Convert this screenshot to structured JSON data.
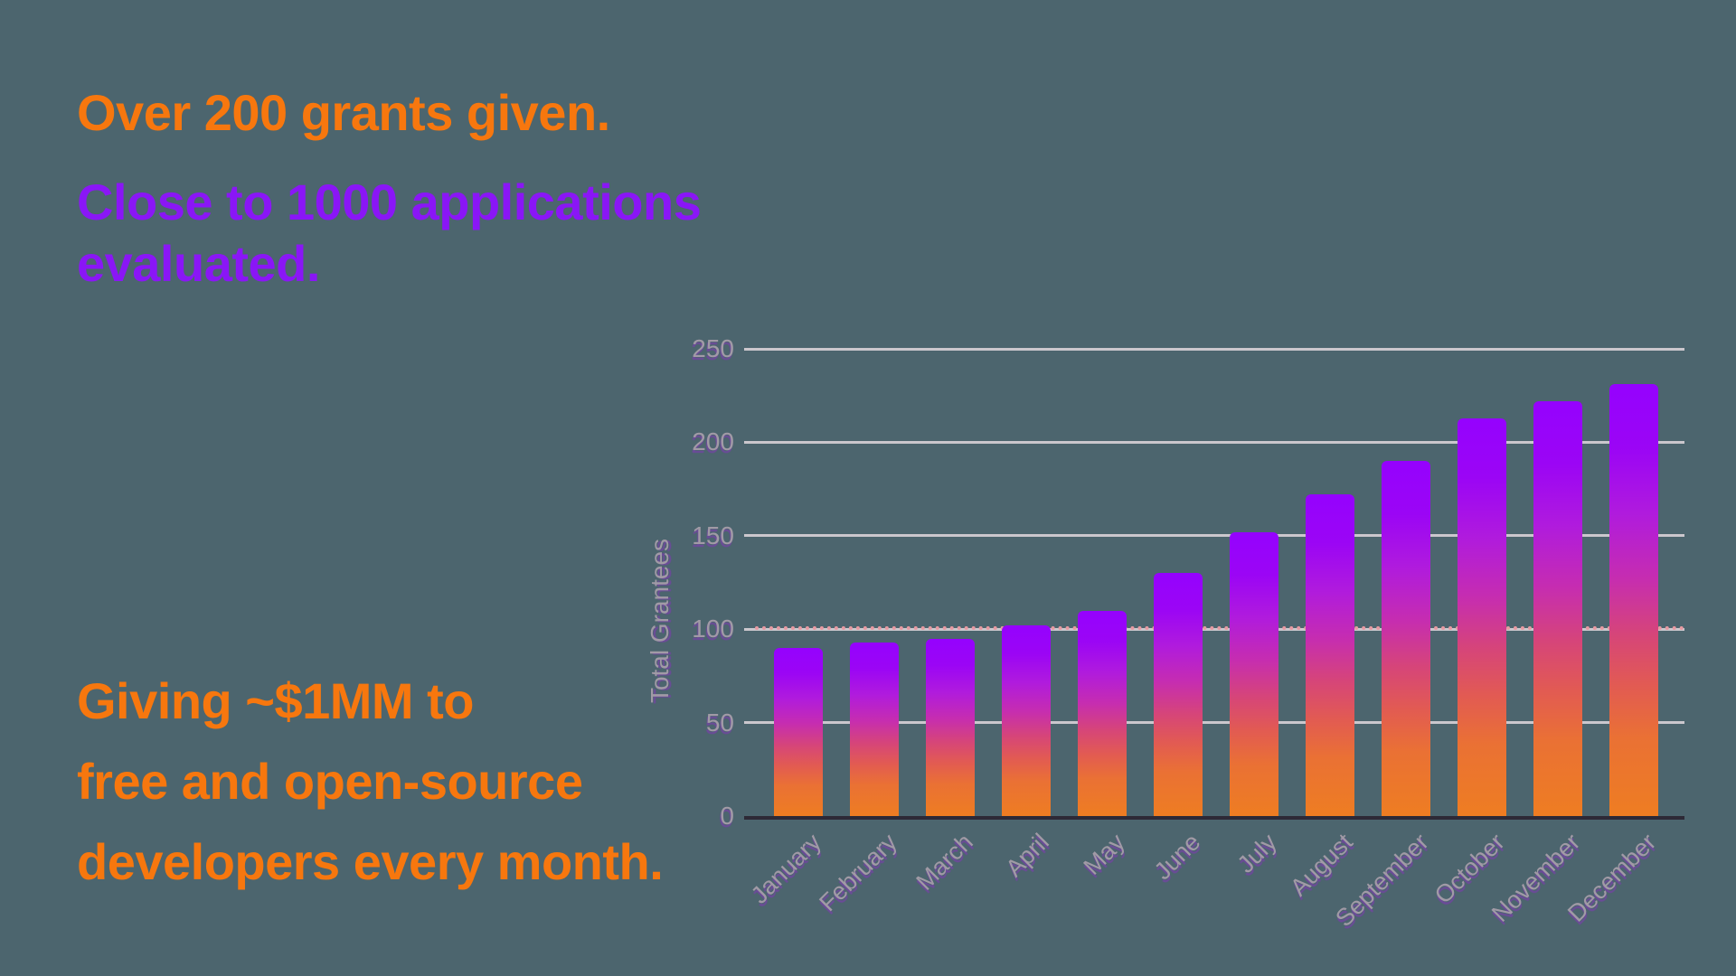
{
  "headline": {
    "line1": "Over 200 grants given.",
    "line2a": "Close to 1000 applications",
    "line2b": "evaluated."
  },
  "footer_text": {
    "line1": "Giving ~$1MM to",
    "line2": "free and open-source",
    "line3": "developers every month."
  },
  "colors": {
    "background": "#4c656e",
    "orange_text": "#f7770e",
    "purple_text": "#8a16f6",
    "gridline": "#cbc7cd",
    "axis_line": "#2d2936",
    "tick_label": "#a19aa6",
    "dotted_line": "#e79aa2",
    "bar_gradient": [
      "#9502fe",
      "#9b05f5",
      "#b01bdd",
      "#c62db0",
      "#d64579",
      "#e25b52",
      "#ea7134",
      "#ee7d22"
    ]
  },
  "chart_data": {
    "type": "bar",
    "title": "",
    "xlabel": "",
    "ylabel": "Total Grantees",
    "categories": [
      "January",
      "February",
      "March",
      "April",
      "May",
      "June",
      "July",
      "August",
      "September",
      "October",
      "November",
      "December"
    ],
    "values": [
      90,
      93,
      95,
      102,
      110,
      130,
      152,
      172,
      190,
      213,
      222,
      231
    ],
    "yticks": [
      0,
      50,
      100,
      150,
      200,
      250
    ],
    "ylim": [
      0,
      250
    ],
    "grid": true,
    "legend": false,
    "annotation_line": {
      "y": 100,
      "style": "dotted"
    }
  }
}
